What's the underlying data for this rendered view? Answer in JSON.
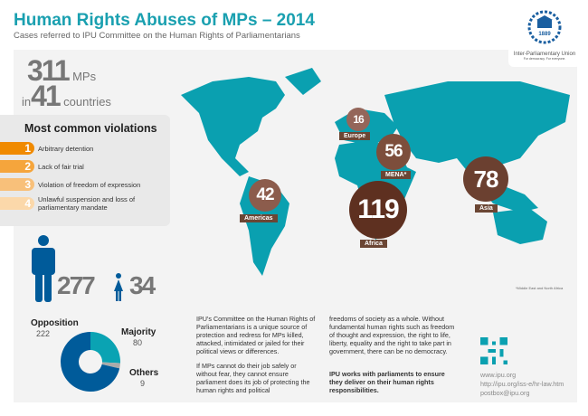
{
  "header": {
    "title": "Human Rights Abuses of MPs – 2014",
    "subtitle": "Cases referred to IPU Committee on the Human Rights of Parliamentarians"
  },
  "logo": {
    "year": "1889",
    "name": "Inter-Parliamentary Union",
    "tagline": "For democracy. For everyone."
  },
  "totals": {
    "mps": "311",
    "mps_label": "MPs",
    "in": "in",
    "countries": "41",
    "countries_label": "countries"
  },
  "violations": {
    "title": "Most common violations",
    "items": [
      {
        "n": "1",
        "label": "Arbitrary detention",
        "color": "#f08a00"
      },
      {
        "n": "2",
        "label": "Lack of fair trial",
        "color": "#f5a53c"
      },
      {
        "n": "3",
        "label": "Violation of freedom of expression",
        "color": "#f8c07a"
      },
      {
        "n": "4",
        "label": "Unlawful suspension and loss of parliamentary mandate",
        "color": "#fbd8aa"
      }
    ]
  },
  "regions": [
    {
      "name": "Europe",
      "value": "16"
    },
    {
      "name": "MENA*",
      "value": "56"
    },
    {
      "name": "Asia",
      "value": "78"
    },
    {
      "name": "Americas",
      "value": "42"
    },
    {
      "name": "Africa",
      "value": "119"
    }
  ],
  "footnote": "*Middle East and North Africa",
  "gender": {
    "men": "277",
    "women": "34"
  },
  "chart_data": {
    "type": "pie",
    "donut": true,
    "title": "",
    "categories": [
      "Opposition",
      "Majority",
      "Others"
    ],
    "values": [
      222,
      80,
      9
    ],
    "colors": [
      "#005b9a",
      "#0aa3b3",
      "#aaaaaa"
    ]
  },
  "text": {
    "col1a": "IPU's Committee on the Human Rights of Parliamentarians is a unique source of protection and redress for MPs killed, attacked, intimidated or jailed for their political views or differences.",
    "col1b": "If MPs cannot do their job safely or without fear, they cannot ensure parliament does its job of protecting the human rights and political",
    "col2a": "freedoms of society as a whole. Without fundamental human rights such as freedom of thought and expression, the right to life, liberty, equality and the right to take part in government, there can be no democracy.",
    "col2b": "IPU works with parliaments to ensure they deliver on their human rights responsibilities."
  },
  "contact": {
    "web": "www.ipu.org",
    "link": "http://ipu.org/iss-e/hr-law.htm",
    "email": "postbox@ipu.org"
  }
}
